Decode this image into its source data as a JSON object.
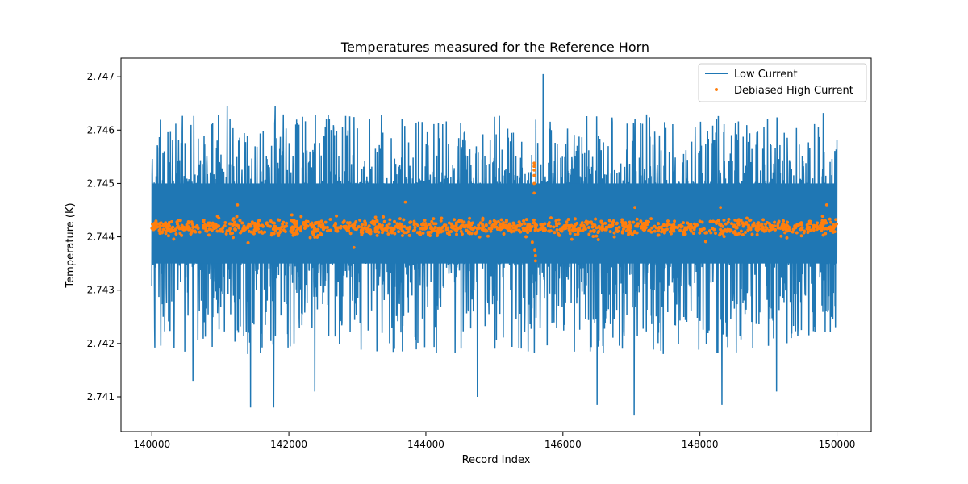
{
  "chart_data": {
    "type": "line",
    "title": "Temperatures measured for the Reference Horn",
    "xlabel": "Record Index",
    "ylabel": "Temperature (K)",
    "xlim": [
      139550,
      150500
    ],
    "ylim": [
      2.74035,
      2.74735
    ],
    "xticks": [
      140000,
      142000,
      144000,
      146000,
      148000,
      150000
    ],
    "xtick_labels": [
      "140000",
      "142000",
      "144000",
      "146000",
      "148000",
      "150000"
    ],
    "yticks": [
      2.741,
      2.742,
      2.743,
      2.744,
      2.745,
      2.746,
      2.747
    ],
    "ytick_labels": [
      "2.741",
      "2.742",
      "2.743",
      "2.744",
      "2.745",
      "2.746",
      "2.747"
    ],
    "grid": false,
    "legend_position": "top-right",
    "series": [
      {
        "name": "Low Current",
        "style": "line",
        "color": "#1f77b4",
        "x_range": [
          140000,
          150000
        ],
        "center": 2.7442,
        "band": [
          2.7435,
          2.745
        ],
        "spikes": [
          {
            "x": 145710,
            "y": 2.74705
          },
          {
            "x": 141100,
            "y": 2.74645
          },
          {
            "x": 141800,
            "y": 2.74645
          },
          {
            "x": 140350,
            "y": 2.74612
          },
          {
            "x": 143650,
            "y": 2.7462
          },
          {
            "x": 145000,
            "y": 2.74625
          },
          {
            "x": 149800,
            "y": 2.74632
          },
          {
            "x": 142200,
            "y": 2.74625
          },
          {
            "x": 147050,
            "y": 2.74605
          },
          {
            "x": 141440,
            "y": 2.7408
          },
          {
            "x": 141780,
            "y": 2.7408
          },
          {
            "x": 147040,
            "y": 2.74065
          },
          {
            "x": 146500,
            "y": 2.74085
          },
          {
            "x": 148320,
            "y": 2.74085
          },
          {
            "x": 144750,
            "y": 2.741
          },
          {
            "x": 149120,
            "y": 2.7411
          },
          {
            "x": 142380,
            "y": 2.7411
          },
          {
            "x": 140600,
            "y": 2.7413
          }
        ]
      },
      {
        "name": "Debiased High Current",
        "style": "scatter",
        "color": "#ff7f0e",
        "x_range": [
          140000,
          150000
        ],
        "center": 2.74418,
        "band": [
          2.74385,
          2.74445
        ],
        "outliers": [
          {
            "x": 145580,
            "y": 2.74538
          },
          {
            "x": 145580,
            "y": 2.74532
          },
          {
            "x": 145580,
            "y": 2.74525
          },
          {
            "x": 145580,
            "y": 2.74515
          },
          {
            "x": 145580,
            "y": 2.745
          },
          {
            "x": 145580,
            "y": 2.74482
          },
          {
            "x": 145600,
            "y": 2.74355
          },
          {
            "x": 145600,
            "y": 2.74365
          },
          {
            "x": 145590,
            "y": 2.74375
          },
          {
            "x": 143700,
            "y": 2.74465
          },
          {
            "x": 147050,
            "y": 2.74455
          },
          {
            "x": 148300,
            "y": 2.74455
          },
          {
            "x": 141250,
            "y": 2.7446
          },
          {
            "x": 142950,
            "y": 2.7438
          },
          {
            "x": 149850,
            "y": 2.7446
          }
        ]
      }
    ]
  }
}
